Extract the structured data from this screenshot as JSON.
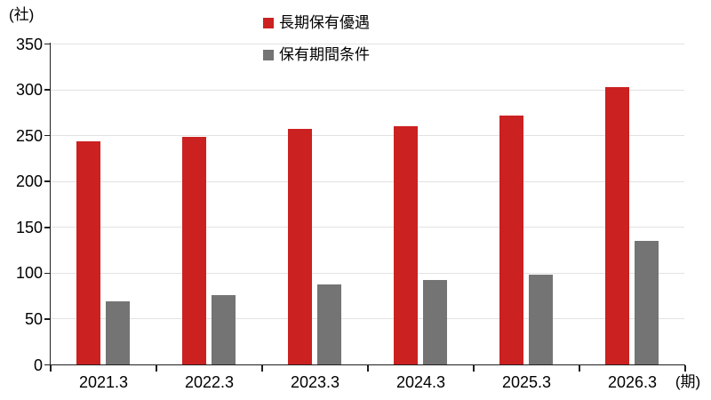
{
  "chart_data": {
    "type": "bar",
    "title": "",
    "categories": [
      "2021.3",
      "2022.3",
      "2023.3",
      "2024.3",
      "2025.3",
      "2026.3"
    ],
    "series": [
      {
        "name": "長期保有優遇",
        "color": "#CB2120",
        "values": [
          244,
          249,
          257,
          260,
          272,
          303
        ]
      },
      {
        "name": "保有期間条件",
        "color": "#747474",
        "values": [
          69,
          76,
          88,
          93,
          98,
          135
        ]
      }
    ],
    "y_axis": {
      "unit_label": "(社)",
      "min": 0,
      "max": 350,
      "tick_interval": 50,
      "tick_labels": [
        "0",
        "50",
        "100",
        "150",
        "200",
        "250",
        "300",
        "350"
      ]
    },
    "x_axis": {
      "unit_label": "(期)"
    },
    "legend_position": "top-center",
    "grid": true,
    "colors": {
      "gridline": "#E2E2E2",
      "axis": "#1F1F1F",
      "background": "#FFFFFF"
    }
  }
}
